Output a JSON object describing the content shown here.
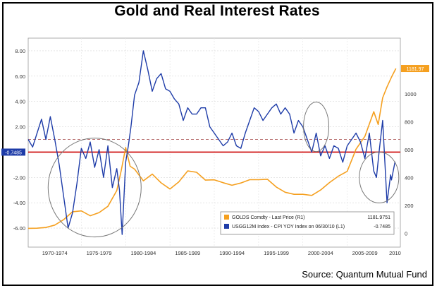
{
  "chart_data": {
    "type": "line",
    "title": "Gold and Real Interest Rates",
    "source": "Source: Quantum Mutual Fund",
    "x_tick_labels": [
      "1970-1974",
      "1975-1979",
      "1980-1984",
      "1985-1989",
      "1990-1994",
      "1995-1999",
      "2000-2004",
      "2005-2009",
      "2010"
    ],
    "x_range": [
      1969,
      2011
    ],
    "left_axis": {
      "ticks": [
        "8.00",
        "6.00",
        "4.00",
        "2.00",
        "0.00",
        "-2.00",
        "-4.00",
        "-6.00"
      ],
      "range": [
        -7.5,
        9.0
      ]
    },
    "right_axis": {
      "ticks": [
        "1000",
        "800",
        "600",
        "400",
        "200",
        "0"
      ],
      "range": [
        -100,
        1400
      ]
    },
    "zero_marker_label": "-0.7485",
    "price_marker_label": "1181.97",
    "legend": {
      "position": "bottom-right",
      "entries": [
        {
          "label": "GOLDS Comdty - Last Price (R1)",
          "value": "1181.9751",
          "color": "#f5a020"
        },
        {
          "label": "USGG12M Index - CPI YOY Index on 06/30/10 (L1)",
          "value": "-0.7485",
          "color": "#1e3ca8"
        }
      ]
    },
    "series": [
      {
        "name": "GOLDS Comdty - Last Price (R1)",
        "axis": "right",
        "color": "#f5a020",
        "x": [
          1969,
          1970,
          1971,
          1972,
          1973,
          1974,
          1975,
          1976,
          1977,
          1978,
          1979,
          1979.5,
          1980,
          1980.5,
          1981,
          1982,
          1983,
          1984,
          1985,
          1986,
          1987,
          1988,
          1989,
          1990,
          1991,
          1992,
          1993,
          1994,
          1995,
          1996,
          1997,
          1998,
          1999,
          2000,
          2001,
          2002,
          2003,
          2004,
          2005,
          2006,
          2007,
          2008,
          2008.5,
          2009,
          2009.5,
          2010,
          2010.5
        ],
        "values": [
          35,
          36,
          41,
          58,
          97,
          154,
          160,
          125,
          148,
          193,
          306,
          450,
          615,
          480,
          460,
          376,
          424,
          361,
          317,
          368,
          447,
          437,
          381,
          383,
          362,
          344,
          360,
          384,
          384,
          387,
          331,
          294,
          279,
          279,
          271,
          310,
          363,
          409,
          444,
          603,
          695,
          872,
          780,
          972,
          1050,
          1120,
          1182
        ]
      },
      {
        "name": "USGG12M Index - CPI YOY Index on 06/30/10 (L1)",
        "axis": "left",
        "color": "#1e3ca8",
        "x": [
          1969,
          1969.5,
          1970,
          1970.5,
          1971,
          1971.5,
          1972,
          1972.5,
          1973,
          1973.5,
          1974,
          1974.5,
          1975,
          1975.5,
          1976,
          1976.5,
          1977,
          1977.5,
          1978,
          1978.5,
          1979,
          1979.3,
          1979.6,
          1980,
          1980.3,
          1980.6,
          1981,
          1981.5,
          1982,
          1982.5,
          1983,
          1983.5,
          1984,
          1984.5,
          1985,
          1985.5,
          1986,
          1986.5,
          1987,
          1987.5,
          1988,
          1988.5,
          1989,
          1989.5,
          1990,
          1990.5,
          1991,
          1991.5,
          1992,
          1992.5,
          1993,
          1993.5,
          1994,
          1994.5,
          1995,
          1995.5,
          1996,
          1996.5,
          1997,
          1997.5,
          1998,
          1998.5,
          1999,
          1999.5,
          2000,
          2000.5,
          2001,
          2001.5,
          2002,
          2002.5,
          2003,
          2003.5,
          2004,
          2004.5,
          2005,
          2005.5,
          2006,
          2006.5,
          2007,
          2007.5,
          2008,
          2008.3,
          2008.6,
          2009,
          2009.5,
          2009.9,
          2010,
          2010.4
        ],
        "values": [
          1.0,
          0.4,
          1.5,
          2.6,
          1.0,
          2.8,
          1.0,
          -1.0,
          -3.5,
          -6.0,
          -4.8,
          -2.5,
          0.3,
          -0.5,
          0.8,
          -1.2,
          0.2,
          -2.0,
          0.5,
          -2.8,
          -1.3,
          -3.0,
          -6.5,
          -0.8,
          0.5,
          2.0,
          4.5,
          5.5,
          8.0,
          6.5,
          4.8,
          5.8,
          6.2,
          5.0,
          4.8,
          4.2,
          3.8,
          2.5,
          3.5,
          3.0,
          3.0,
          3.5,
          3.5,
          2.0,
          1.5,
          1.0,
          0.5,
          0.8,
          1.5,
          0.5,
          0.3,
          1.5,
          2.5,
          3.5,
          3.2,
          2.5,
          3.0,
          3.5,
          3.8,
          3.0,
          3.5,
          3.0,
          1.5,
          2.5,
          2.0,
          1.0,
          0.0,
          1.5,
          -0.3,
          0.5,
          -0.5,
          0.5,
          0.3,
          -0.8,
          0.5,
          1.0,
          1.5,
          0.8,
          -0.5,
          1.5,
          -1.5,
          -2.0,
          0.0,
          2.5,
          -4.0,
          -1.8,
          -2.2,
          -0.75
        ]
      }
    ],
    "reference_lines": [
      {
        "axis": "left",
        "value": 0.0,
        "color": "#cc0000",
        "style": "solid"
      },
      {
        "axis": "left",
        "value": 1.0,
        "color": "#b06060",
        "style": "dashed"
      }
    ],
    "annotations": [
      "circle around 1973-1980 negative rates",
      "circle around 2001-2002",
      "circle around 2008-2010"
    ]
  }
}
